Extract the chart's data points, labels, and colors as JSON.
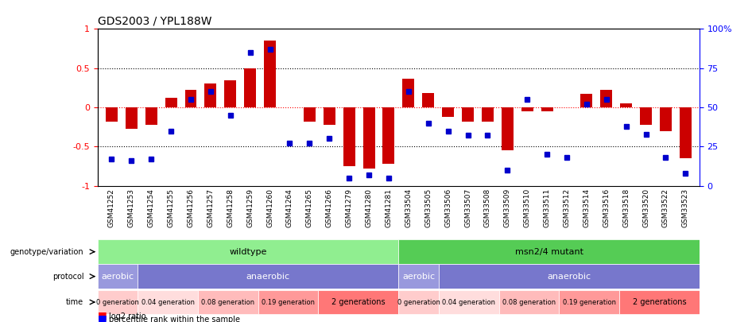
{
  "title": "GDS2003 / YPL188W",
  "samples": [
    "GSM41252",
    "GSM41253",
    "GSM41254",
    "GSM41255",
    "GSM41256",
    "GSM41257",
    "GSM41258",
    "GSM41259",
    "GSM41260",
    "GSM41264",
    "GSM41265",
    "GSM41266",
    "GSM41279",
    "GSM41280",
    "GSM41281",
    "GSM33504",
    "GSM33505",
    "GSM33506",
    "GSM33507",
    "GSM33508",
    "GSM33509",
    "GSM33510",
    "GSM33511",
    "GSM33512",
    "GSM33514",
    "GSM33516",
    "GSM33518",
    "GSM33520",
    "GSM33522",
    "GSM33523"
  ],
  "log2_ratio": [
    -0.18,
    -0.27,
    -0.22,
    0.12,
    0.22,
    0.3,
    0.35,
    0.5,
    0.85,
    0.0,
    -0.18,
    -0.22,
    -0.75,
    -0.78,
    -0.72,
    0.37,
    0.18,
    -0.12,
    -0.18,
    -0.18,
    -0.55,
    -0.05,
    -0.05,
    0.0,
    0.17,
    0.22,
    0.05,
    -0.22,
    -0.3,
    -0.65
  ],
  "percentile": [
    17,
    16,
    17,
    35,
    55,
    60,
    45,
    85,
    87,
    27,
    27,
    30,
    5,
    7,
    5,
    60,
    40,
    35,
    32,
    32,
    10,
    55,
    20,
    18,
    52,
    55,
    38,
    33,
    18,
    8
  ],
  "genotype_groups": [
    {
      "label": "wildtype",
      "start": 0,
      "end": 15,
      "color": "#90EE90"
    },
    {
      "label": "msn2/4 mutant",
      "start": 15,
      "end": 30,
      "color": "#55CC55"
    }
  ],
  "protocol_groups": [
    {
      "label": "aerobic",
      "start": 0,
      "end": 2,
      "color": "#9999DD"
    },
    {
      "label": "anaerobic",
      "start": 2,
      "end": 15,
      "color": "#7777CC"
    },
    {
      "label": "aerobic",
      "start": 15,
      "end": 17,
      "color": "#9999DD"
    },
    {
      "label": "anaerobic",
      "start": 17,
      "end": 30,
      "color": "#7777CC"
    }
  ],
  "time_groups": [
    {
      "label": "0 generation",
      "start": 0,
      "end": 2,
      "color": "#FFCCCC"
    },
    {
      "label": "0.04 generation",
      "start": 2,
      "end": 5,
      "color": "#FFDDDD"
    },
    {
      "label": "0.08 generation",
      "start": 5,
      "end": 8,
      "color": "#FFBBBB"
    },
    {
      "label": "0.19 generation",
      "start": 8,
      "end": 11,
      "color": "#FF9999"
    },
    {
      "label": "2 generations",
      "start": 11,
      "end": 15,
      "color": "#FF7777"
    },
    {
      "label": "0 generation",
      "start": 15,
      "end": 17,
      "color": "#FFCCCC"
    },
    {
      "label": "0.04 generation",
      "start": 17,
      "end": 20,
      "color": "#FFDDDD"
    },
    {
      "label": "0.08 generation",
      "start": 20,
      "end": 23,
      "color": "#FFBBBB"
    },
    {
      "label": "0.19 generation",
      "start": 23,
      "end": 26,
      "color": "#FF9999"
    },
    {
      "label": "2 generations",
      "start": 26,
      "end": 30,
      "color": "#FF7777"
    }
  ],
  "bar_color": "#CC0000",
  "dot_color": "#0000CC",
  "ylim": [
    -1,
    1
  ],
  "yticks_left": [
    -1,
    -0.5,
    0,
    0.5,
    1
  ],
  "yticks_right": [
    0,
    25,
    50,
    75,
    100
  ],
  "dotted_lines": [
    -0.5,
    0,
    0.5
  ],
  "background_color": "#FFFFFF"
}
